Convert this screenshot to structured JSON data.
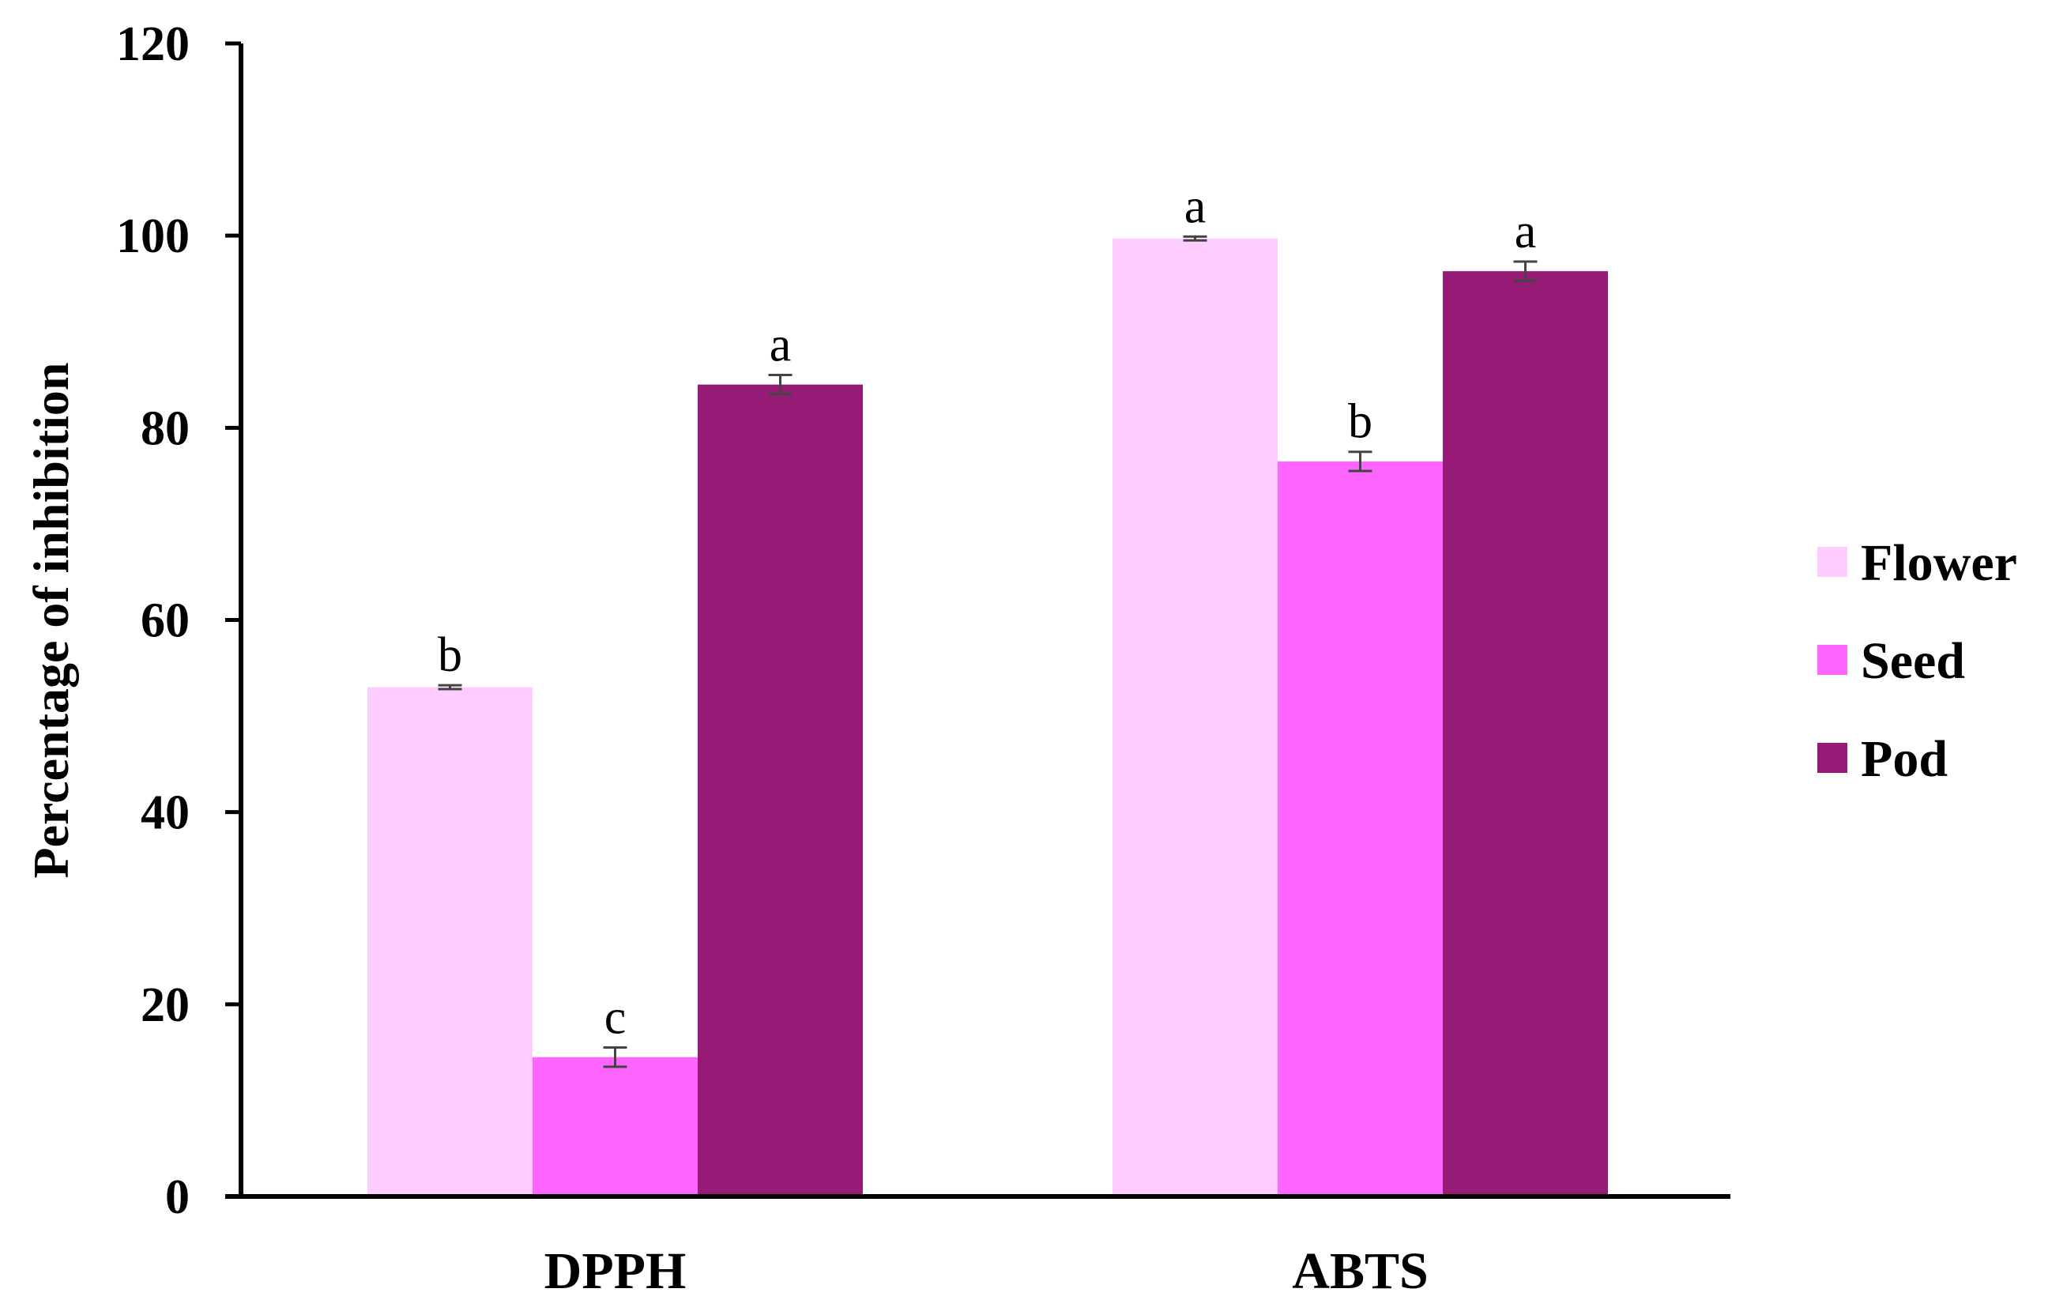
{
  "chart_data": {
    "type": "bar",
    "title": "",
    "xlabel": "",
    "ylabel": "Percentage of inhibition",
    "ylim": [
      0,
      120
    ],
    "yticks": [
      "0",
      "20",
      "40",
      "60",
      "80",
      "100",
      "120"
    ],
    "categories": [
      "DPPH",
      "ABTS"
    ],
    "grid": false,
    "legend_position": "right",
    "series": [
      {
        "name": "Flower",
        "color": "#FFCCFF",
        "values": [
          53.0,
          99.7
        ],
        "errors": [
          0.2,
          0.2
        ],
        "labels": [
          "b",
          "a"
        ]
      },
      {
        "name": "Seed",
        "color": "#FF66FF",
        "values": [
          14.5,
          76.5
        ],
        "errors": [
          1.0,
          1.0
        ],
        "labels": [
          "c",
          "b"
        ]
      },
      {
        "name": "Pod",
        "color": "#961B77",
        "values": [
          84.5,
          96.3
        ],
        "errors": [
          1.0,
          1.0
        ],
        "labels": [
          "a",
          "a"
        ]
      }
    ]
  }
}
